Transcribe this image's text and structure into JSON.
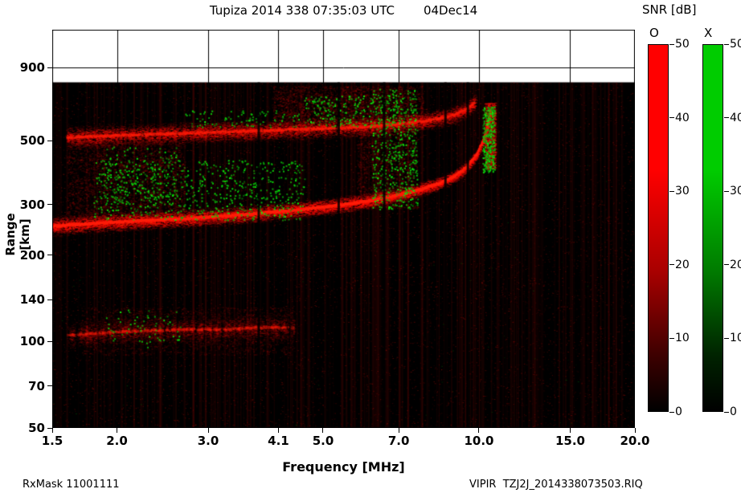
{
  "header": {
    "title": "Tupiza 2014 338 07:35:03 UTC",
    "date": "04Dec14"
  },
  "footer": {
    "left": "RxMask 11001111",
    "right": "VIPIR  TZJ2J_2014338073503.RIQ"
  },
  "chart_data": {
    "type": "heatmap",
    "title": "Tupiza 2014 338 07:35:03 UTC",
    "date_label": "04Dec14",
    "xlabel": "Frequency [MHz]",
    "ylabel": "Range [km]",
    "x_scale": "log",
    "y_scale": "log",
    "x_domain": [
      1.5,
      20.0
    ],
    "y_domain": [
      50,
      1220
    ],
    "x_ticks": [
      1.5,
      2.0,
      3.0,
      4.1,
      5.0,
      7.0,
      10.0,
      15.0,
      20.0
    ],
    "y_ticks": [
      50,
      70,
      100,
      140,
      200,
      300,
      500,
      900
    ],
    "grid": true,
    "echo_ceiling_km": 800,
    "background_color": "#000000",
    "foF2_cusp_mhz": 10.5,
    "colorbar": {
      "label": "SNR [dB]",
      "o_label": "O",
      "x_label": "X",
      "min": 0,
      "max": 50,
      "ticks": [
        50,
        40,
        30,
        20,
        10,
        0
      ],
      "o_color": "#ff0000",
      "x_color": "#00cc00"
    },
    "noise": {
      "seed": 7,
      "speckle_count": 26000,
      "stripe_count": 240
    },
    "o_traces": [
      {
        "name": "F2 first hop O-mode echo",
        "points": [
          [
            1.5,
            252
          ],
          [
            1.8,
            258
          ],
          [
            2.2,
            263
          ],
          [
            2.7,
            268
          ],
          [
            3.2,
            273
          ],
          [
            3.8,
            280
          ],
          [
            4.5,
            288
          ],
          [
            5.2,
            296
          ],
          [
            6.0,
            307
          ],
          [
            6.8,
            320
          ],
          [
            7.6,
            336
          ],
          [
            8.4,
            356
          ],
          [
            9.0,
            378
          ],
          [
            9.5,
            408
          ],
          [
            9.9,
            450
          ],
          [
            10.2,
            505
          ],
          [
            10.4,
            570
          ],
          [
            10.5,
            640
          ]
        ],
        "thickness_km": 30,
        "intensity": 0.95,
        "core": 0.9,
        "gap": 0
      },
      {
        "name": "F2 second hop / spread-F O-mode echo",
        "points": [
          [
            1.6,
            515
          ],
          [
            2.2,
            525
          ],
          [
            3.0,
            535
          ],
          [
            4.0,
            545
          ],
          [
            5.0,
            552
          ],
          [
            6.0,
            560
          ],
          [
            7.0,
            572
          ],
          [
            8.0,
            590
          ],
          [
            8.8,
            610
          ],
          [
            9.4,
            640
          ],
          [
            9.8,
            680
          ]
        ],
        "thickness_km": 70,
        "intensity": 0.7,
        "core": 0.45,
        "gap": 0.1
      },
      {
        "name": "E-region weak echo",
        "points": [
          [
            1.6,
            105
          ],
          [
            2.0,
            108
          ],
          [
            2.6,
            110
          ],
          [
            3.2,
            110
          ],
          [
            3.8,
            112
          ],
          [
            4.4,
            112
          ]
        ],
        "thickness_km": 18,
        "intensity": 0.3,
        "core": 0.3,
        "gap": 0.55
      }
    ],
    "o_patches": [
      {
        "name": "low-frequency spread between hops",
        "f": [
          1.6,
          2.7
        ],
        "r": [
          270,
          500
        ],
        "count": 2600,
        "alpha": 0.2
      },
      {
        "name": "E-region diffuse patches",
        "f": [
          1.7,
          4.4
        ],
        "r": [
          90,
          132
        ],
        "count": 2000,
        "alpha": 0.16
      },
      {
        "name": "upper band thickening",
        "f": [
          4.0,
          7.8
        ],
        "r": [
          560,
          780
        ],
        "count": 2400,
        "alpha": 0.22
      },
      {
        "name": "mid-band spread 6-7.5 MHz",
        "f": [
          5.8,
          7.6
        ],
        "r": [
          290,
          560
        ],
        "count": 1600,
        "alpha": 0.18
      },
      {
        "name": "foF2 cusp red spread",
        "f": [
          10.25,
          10.75
        ],
        "r": [
          400,
          680
        ],
        "count": 1100,
        "alpha": 0.45
      }
    ],
    "x_clusters": [
      {
        "name": "X-mode speckle above F trace",
        "f": [
          1.8,
          4.6
        ],
        "r": [
          265,
          430
        ],
        "count": 700,
        "size": 2
      },
      {
        "name": "X-mode speckle 6.2-7.6 MHz column",
        "f": [
          6.2,
          7.6
        ],
        "r": [
          290,
          760
        ],
        "count": 540,
        "size": 2
      },
      {
        "name": "X-mode speckle at cusp",
        "f": [
          10.15,
          10.7
        ],
        "r": [
          390,
          660
        ],
        "count": 300,
        "size": 2
      },
      {
        "name": "X-mode speckle on upper band mid",
        "f": [
          4.6,
          6.2
        ],
        "r": [
          560,
          720
        ],
        "count": 170,
        "size": 2
      },
      {
        "name": "X-mode speckle E-region",
        "f": [
          1.9,
          2.7
        ],
        "r": [
          95,
          130
        ],
        "count": 60,
        "size": 2
      },
      {
        "name": "X-mode speckle low-freq spread",
        "f": [
          1.9,
          2.6
        ],
        "r": [
          300,
          480
        ],
        "count": 140,
        "size": 2
      },
      {
        "name": "X-mode speckle upper band left",
        "f": [
          2.7,
          4.5
        ],
        "r": [
          560,
          640
        ],
        "count": 90,
        "size": 2
      }
    ],
    "rfi_stripes_mhz": [
      3.75,
      5.35,
      6.55,
      8.6,
      9.5
    ]
  }
}
